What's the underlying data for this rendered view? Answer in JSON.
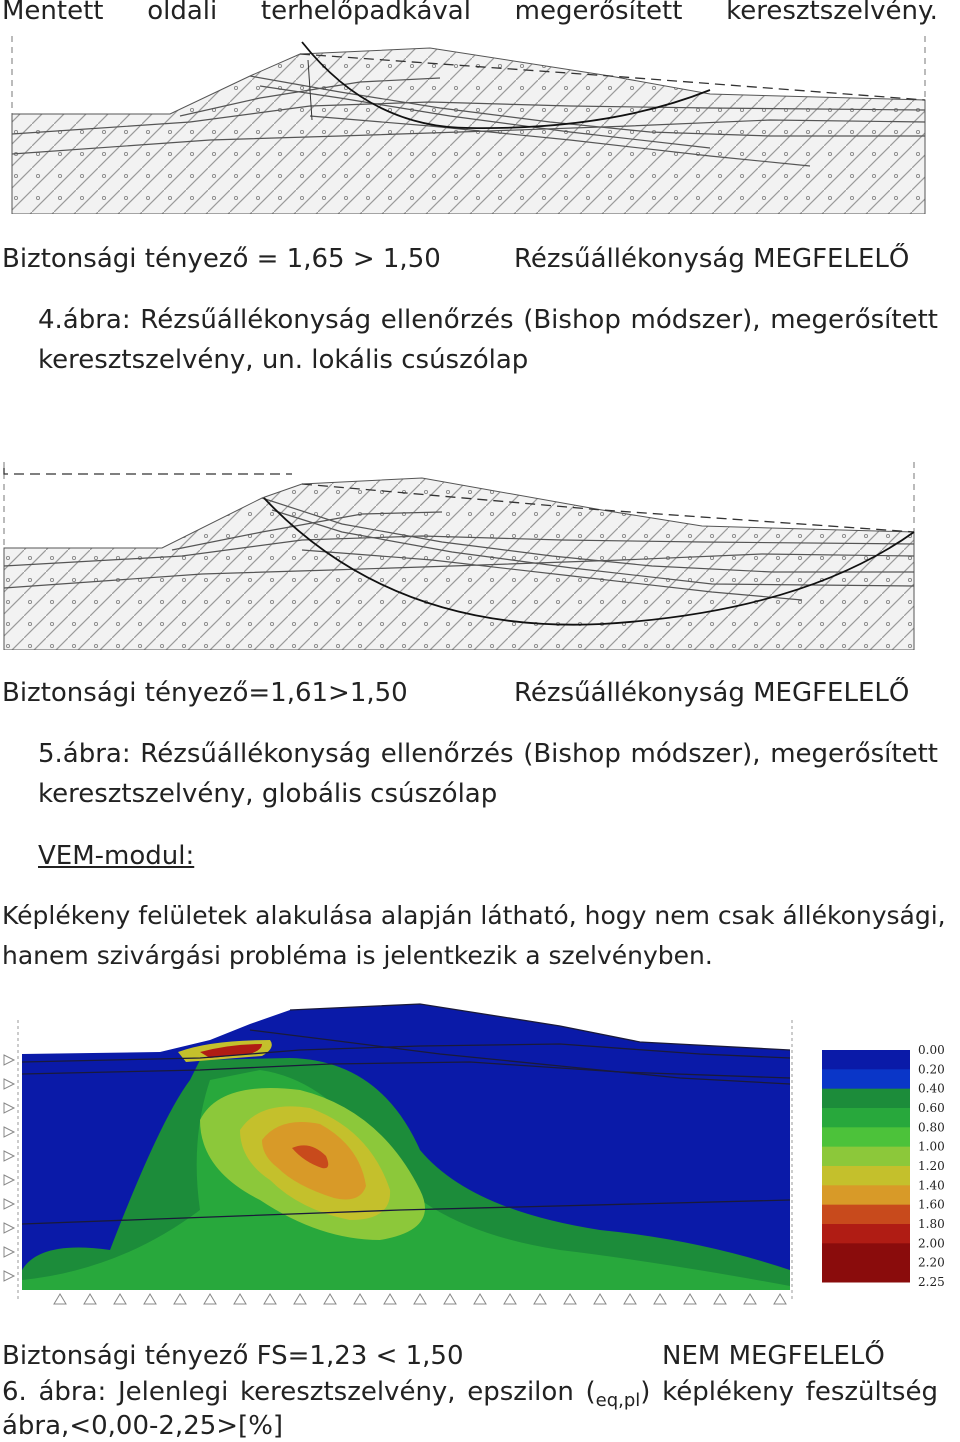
{
  "header": {
    "words": [
      "Mentett",
      "oldali",
      "terhelőpadkával",
      "megerősített",
      "keresztszelvény."
    ]
  },
  "figure4": {
    "result_left": "Biztonsági tényező = 1,65 > 1,50",
    "result_right": "Rézsűállékonyság MEGFELELŐ",
    "caption_line1_words": [
      "4.ábra:",
      "Rézsűállékonyság",
      "ellenőrzés",
      "(Bishop",
      "módszer),",
      "megerősített"
    ],
    "caption_line2": "keresztszelvény, un. lokális csúszólap"
  },
  "figure5": {
    "result_left": "Biztonsági tényező=1,61>1,50",
    "result_right": "Rézsűállékonyság MEGFELELŐ",
    "caption_line1_words": [
      "5.ábra:",
      "Rézsűállékonyság",
      "ellenőrzés",
      "(Bishop",
      "módszer),",
      "megerősített"
    ],
    "caption_line2": "keresztszelvény, globális csúszólap"
  },
  "vem": {
    "heading": "VEM-modul:",
    "paragraph_line1": "Képlékeny felületek alakulása alapján látható, hogy nem csak állékonysági,",
    "paragraph_line2": "hanem szivárgási probléma is jelentkezik a szelvényben."
  },
  "figure6": {
    "legend": [
      {
        "label": "0.00",
        "color": "#0a1aa8"
      },
      {
        "label": "0.20",
        "color": "#0a1aa8"
      },
      {
        "label": "0.40",
        "color": "#0a36c8"
      },
      {
        "label": "0.60",
        "color": "#1c8c3a"
      },
      {
        "label": "0.80",
        "color": "#28a83c"
      },
      {
        "label": "1.00",
        "color": "#4cc23a"
      },
      {
        "label": "1.20",
        "color": "#8cc83a"
      },
      {
        "label": "1.40",
        "color": "#c4c02c"
      },
      {
        "label": "1.60",
        "color": "#d89a28"
      },
      {
        "label": "1.80",
        "color": "#c84a1c"
      },
      {
        "label": "2.00",
        "color": "#b01c14"
      },
      {
        "label": "2.20",
        "color": "#8a0c0c"
      },
      {
        "label": "2.25",
        "color": "#8a0c0c"
      }
    ],
    "result_left": "Biztonsági tényező FS=1,23 < 1,50",
    "result_right": "NEM MEGFELELŐ",
    "caption_line1_words": [
      "6.",
      "ábra:",
      "Jelenlegi",
      "keresztszelvény,",
      "epszilon",
      "("
    ],
    "caption_sub": "eq,pl",
    "caption_line1_tail_words": [
      ")",
      "képlékeny",
      "feszültség"
    ],
    "caption_line2": "ábra,<0,00-2,25>[%]"
  }
}
